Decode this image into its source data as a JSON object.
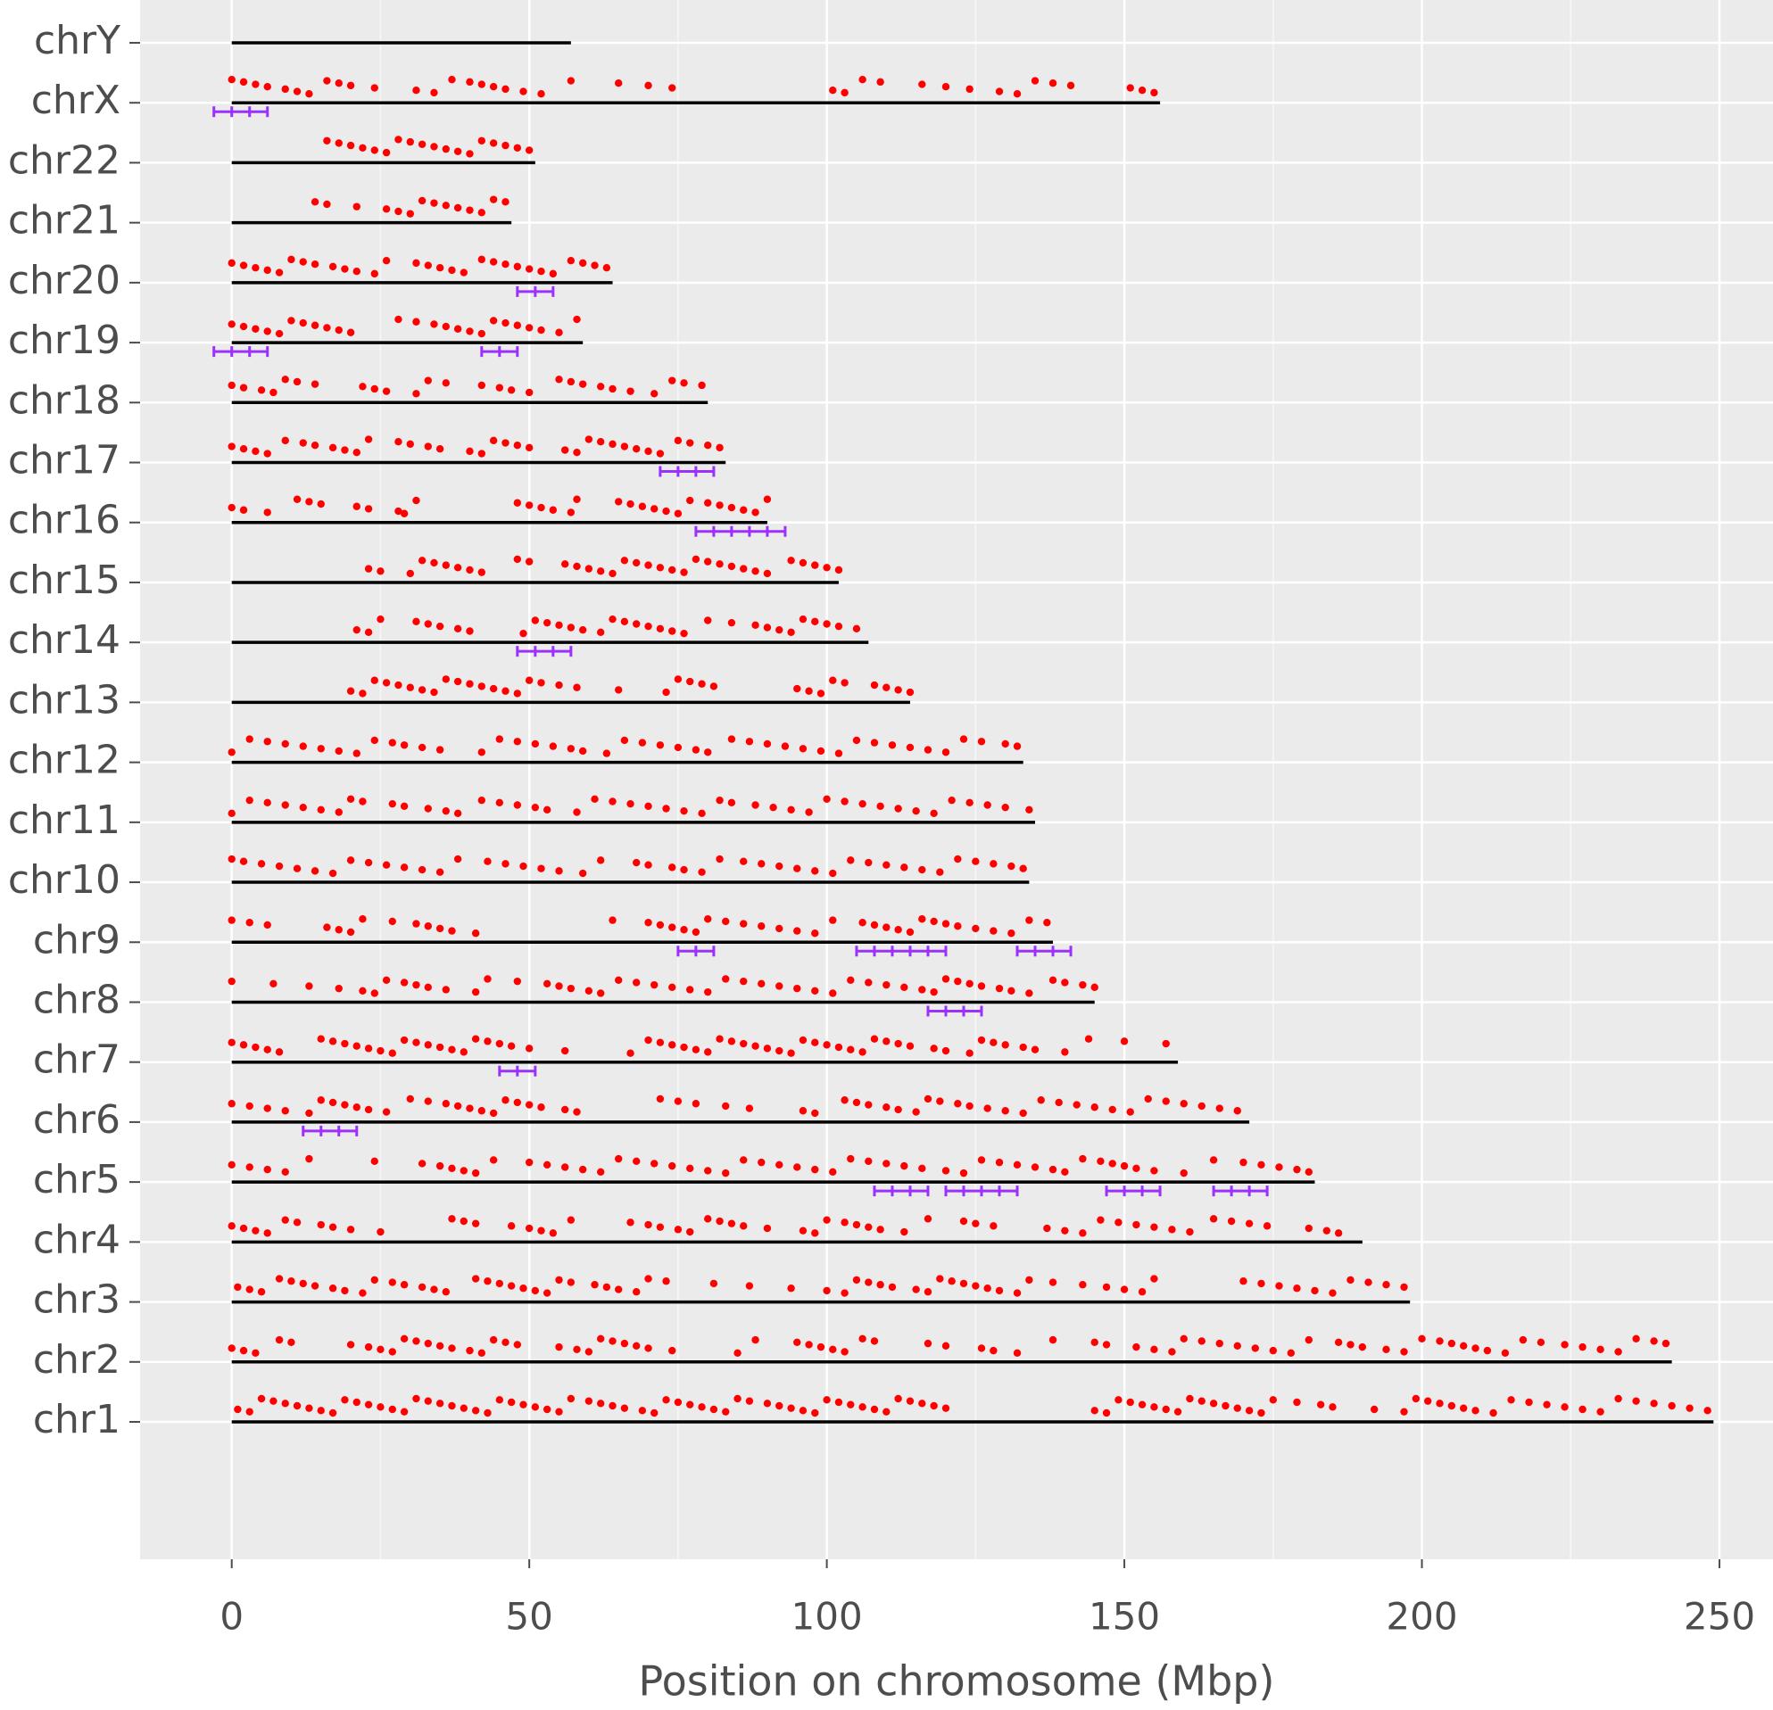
{
  "chart_data": {
    "type": "chromosome",
    "x_label": "Position on chromosome (Mbp)",
    "xlim": [
      -15.4,
      259.0
    ],
    "xticks": [
      0,
      50,
      100,
      150,
      200,
      250
    ],
    "grid": true,
    "line_color": "#000000",
    "point_color": "#ff0000",
    "interval_color": "#9b30ff",
    "chromosomes": [
      {
        "name": "chrY",
        "length": 57,
        "points": [],
        "intervals": []
      },
      {
        "name": "chrX",
        "length": 156,
        "points": [
          0,
          2,
          4,
          6,
          9,
          11,
          13,
          16,
          18,
          20,
          24,
          31,
          34,
          37,
          40,
          42,
          44,
          46,
          49,
          52,
          57,
          65,
          70,
          74,
          101,
          103,
          106,
          109,
          116,
          120,
          124,
          129,
          132,
          135,
          138,
          141,
          151,
          153,
          155
        ],
        "intervals": [
          [
            -3,
            6
          ]
        ]
      },
      {
        "name": "chr22",
        "length": 51,
        "points": [
          16,
          18,
          20,
          22,
          24,
          26,
          28,
          30,
          32,
          34,
          36,
          38,
          40,
          42,
          44,
          46,
          48,
          50
        ],
        "intervals": []
      },
      {
        "name": "chr21",
        "length": 47,
        "points": [
          14,
          16,
          21,
          26,
          28,
          30,
          32,
          34,
          36,
          38,
          40,
          42,
          44,
          46
        ],
        "intervals": []
      },
      {
        "name": "chr20",
        "length": 64,
        "points": [
          0,
          2,
          4,
          6,
          8,
          10,
          12,
          14,
          17,
          19,
          21,
          24,
          26,
          31,
          33,
          35,
          37,
          39,
          42,
          44,
          46,
          48,
          50,
          52,
          54,
          57,
          59,
          61,
          63
        ],
        "intervals": [
          [
            48,
            54
          ]
        ]
      },
      {
        "name": "chr19",
        "length": 59,
        "points": [
          0,
          2,
          4,
          6,
          8,
          10,
          12,
          14,
          16,
          18,
          20,
          28,
          31,
          34,
          36,
          38,
          40,
          42,
          44,
          46,
          48,
          50,
          52,
          55,
          58
        ],
        "intervals": [
          [
            -3,
            6
          ],
          [
            42,
            48
          ]
        ]
      },
      {
        "name": "chr18",
        "length": 80,
        "points": [
          0,
          2,
          5,
          7,
          9,
          11,
          14,
          22,
          24,
          26,
          31,
          33,
          36,
          42,
          45,
          47,
          50,
          55,
          57,
          59,
          62,
          64,
          67,
          71,
          74,
          76,
          79
        ],
        "intervals": []
      },
      {
        "name": "chr17",
        "length": 83,
        "points": [
          0,
          2,
          4,
          6,
          9,
          12,
          14,
          17,
          19,
          21,
          23,
          28,
          30,
          33,
          35,
          40,
          42,
          44,
          46,
          48,
          50,
          56,
          58,
          60,
          62,
          64,
          66,
          68,
          70,
          72,
          75,
          77,
          80,
          82
        ],
        "intervals": [
          [
            72,
            81
          ]
        ]
      },
      {
        "name": "chr16",
        "length": 90,
        "points": [
          0,
          2,
          6,
          11,
          13,
          15,
          21,
          23,
          28,
          29,
          31,
          48,
          50,
          52,
          54,
          57,
          58,
          65,
          67,
          69,
          71,
          73,
          75,
          77,
          80,
          82,
          84,
          86,
          88,
          90
        ],
        "intervals": [
          [
            78,
            93
          ]
        ]
      },
      {
        "name": "chr15",
        "length": 102,
        "points": [
          23,
          25,
          30,
          32,
          34,
          36,
          38,
          40,
          42,
          48,
          50,
          56,
          58,
          60,
          62,
          64,
          66,
          68,
          70,
          72,
          74,
          76,
          78,
          80,
          82,
          84,
          86,
          88,
          90,
          94,
          96,
          98,
          100,
          102
        ],
        "intervals": []
      },
      {
        "name": "chr14",
        "length": 107,
        "points": [
          21,
          23,
          25,
          31,
          33,
          35,
          38,
          40,
          49,
          51,
          53,
          55,
          57,
          59,
          62,
          64,
          66,
          68,
          70,
          72,
          74,
          76,
          80,
          84,
          88,
          90,
          92,
          94,
          96,
          98,
          100,
          102,
          105
        ],
        "intervals": [
          [
            48,
            57
          ]
        ]
      },
      {
        "name": "chr13",
        "length": 114,
        "points": [
          20,
          22,
          24,
          26,
          28,
          30,
          32,
          34,
          36,
          38,
          40,
          42,
          44,
          46,
          48,
          50,
          52,
          55,
          58,
          65,
          73,
          75,
          77,
          79,
          81,
          95,
          97,
          99,
          101,
          103,
          108,
          110,
          112,
          114
        ],
        "intervals": []
      },
      {
        "name": "chr12",
        "length": 133,
        "points": [
          0,
          3,
          6,
          9,
          12,
          15,
          18,
          21,
          24,
          27,
          29,
          32,
          35,
          42,
          45,
          48,
          51,
          54,
          57,
          59,
          63,
          66,
          69,
          72,
          75,
          78,
          80,
          84,
          87,
          90,
          93,
          96,
          99,
          102,
          105,
          108,
          111,
          114,
          117,
          120,
          123,
          126,
          130,
          132
        ],
        "intervals": []
      },
      {
        "name": "chr11",
        "length": 135,
        "points": [
          0,
          3,
          6,
          9,
          12,
          15,
          18,
          20,
          22,
          27,
          29,
          33,
          36,
          38,
          42,
          45,
          48,
          51,
          53,
          58,
          61,
          64,
          67,
          70,
          73,
          76,
          79,
          82,
          84,
          88,
          91,
          94,
          97,
          100,
          103,
          106,
          109,
          112,
          115,
          118,
          121,
          124,
          127,
          130,
          134
        ],
        "intervals": []
      },
      {
        "name": "chr10",
        "length": 134,
        "points": [
          0,
          2,
          5,
          8,
          11,
          14,
          17,
          20,
          23,
          26,
          29,
          32,
          35,
          38,
          43,
          46,
          49,
          52,
          55,
          59,
          62,
          68,
          70,
          74,
          76,
          79,
          82,
          86,
          89,
          92,
          95,
          98,
          101,
          104,
          107,
          110,
          113,
          116,
          119,
          122,
          125,
          128,
          131,
          133
        ],
        "intervals": []
      },
      {
        "name": "chr9",
        "length": 138,
        "points": [
          0,
          3,
          6,
          16,
          18,
          20,
          22,
          27,
          31,
          33,
          35,
          37,
          41,
          64,
          70,
          72,
          74,
          76,
          78,
          80,
          83,
          86,
          89,
          92,
          95,
          98,
          101,
          106,
          108,
          110,
          112,
          114,
          116,
          118,
          120,
          122,
          125,
          128,
          131,
          134,
          137
        ],
        "intervals": [
          [
            75,
            81
          ],
          [
            105,
            120
          ],
          [
            132,
            141
          ]
        ]
      },
      {
        "name": "chr8",
        "length": 145,
        "points": [
          0,
          7,
          13,
          18,
          22,
          24,
          26,
          29,
          31,
          33,
          36,
          41,
          43,
          48,
          53,
          55,
          57,
          60,
          62,
          65,
          68,
          71,
          74,
          77,
          80,
          83,
          86,
          89,
          92,
          95,
          98,
          101,
          104,
          107,
          110,
          113,
          116,
          118,
          120,
          122,
          124,
          126,
          129,
          131,
          134,
          138,
          140,
          143,
          145
        ],
        "intervals": [
          [
            117,
            126
          ]
        ]
      },
      {
        "name": "chr7",
        "length": 159,
        "points": [
          0,
          2,
          4,
          6,
          8,
          15,
          17,
          19,
          21,
          23,
          25,
          27,
          29,
          31,
          33,
          35,
          37,
          39,
          41,
          43,
          45,
          47,
          50,
          56,
          67,
          70,
          72,
          74,
          76,
          78,
          80,
          82,
          84,
          86,
          88,
          90,
          92,
          94,
          96,
          98,
          100,
          102,
          104,
          106,
          108,
          110,
          112,
          114,
          118,
          120,
          124,
          126,
          128,
          130,
          133,
          135,
          140,
          144,
          150,
          157
        ],
        "intervals": [
          [
            45,
            51
          ]
        ]
      },
      {
        "name": "chr6",
        "length": 171,
        "points": [
          0,
          3,
          6,
          9,
          13,
          15,
          17,
          19,
          21,
          23,
          26,
          30,
          33,
          36,
          38,
          40,
          42,
          44,
          46,
          48,
          50,
          52,
          56,
          58,
          72,
          75,
          78,
          83,
          87,
          96,
          98,
          103,
          105,
          107,
          110,
          112,
          115,
          117,
          119,
          122,
          124,
          127,
          130,
          133,
          136,
          139,
          142,
          145,
          148,
          151,
          154,
          157,
          160,
          163,
          166,
          169
        ],
        "intervals": [
          [
            12,
            21
          ]
        ]
      },
      {
        "name": "chr5",
        "length": 182,
        "points": [
          0,
          3,
          6,
          9,
          13,
          24,
          32,
          35,
          37,
          39,
          41,
          44,
          50,
          53,
          56,
          59,
          62,
          65,
          68,
          71,
          74,
          77,
          80,
          83,
          86,
          89,
          92,
          95,
          98,
          101,
          104,
          107,
          110,
          113,
          116,
          120,
          123,
          126,
          129,
          132,
          135,
          138,
          140,
          143,
          146,
          148,
          150,
          152,
          155,
          160,
          165,
          170,
          173,
          176,
          179,
          181
        ],
        "intervals": [
          [
            108,
            117
          ],
          [
            120,
            132
          ],
          [
            147,
            156
          ],
          [
            165,
            174
          ]
        ]
      },
      {
        "name": "chr4",
        "length": 190,
        "points": [
          0,
          2,
          4,
          6,
          9,
          11,
          15,
          17,
          20,
          25,
          37,
          39,
          41,
          47,
          50,
          52,
          54,
          57,
          67,
          70,
          72,
          75,
          77,
          80,
          82,
          84,
          86,
          90,
          96,
          98,
          100,
          103,
          105,
          107,
          109,
          113,
          117,
          123,
          125,
          128,
          137,
          140,
          143,
          146,
          149,
          152,
          155,
          158,
          161,
          165,
          168,
          171,
          174,
          181,
          184,
          186
        ],
        "intervals": []
      },
      {
        "name": "chr3",
        "length": 198,
        "points": [
          1,
          3,
          5,
          8,
          10,
          12,
          14,
          17,
          19,
          22,
          24,
          27,
          29,
          32,
          34,
          36,
          41,
          43,
          45,
          47,
          49,
          51,
          53,
          55,
          57,
          61,
          63,
          65,
          68,
          70,
          73,
          81,
          87,
          94,
          100,
          103,
          105,
          107,
          109,
          111,
          115,
          117,
          119,
          121,
          123,
          125,
          127,
          129,
          132,
          134,
          138,
          143,
          147,
          150,
          153,
          155,
          170,
          173,
          176,
          179,
          182,
          185,
          188,
          191,
          194,
          197
        ],
        "intervals": []
      },
      {
        "name": "chr2",
        "length": 242,
        "points": [
          0,
          2,
          4,
          8,
          10,
          20,
          23,
          25,
          27,
          29,
          31,
          33,
          35,
          37,
          40,
          42,
          44,
          46,
          48,
          55,
          58,
          60,
          62,
          64,
          66,
          68,
          70,
          74,
          85,
          88,
          95,
          97,
          99,
          101,
          103,
          106,
          108,
          117,
          120,
          126,
          128,
          132,
          138,
          145,
          147,
          152,
          155,
          158,
          160,
          163,
          166,
          169,
          172,
          175,
          178,
          181,
          186,
          188,
          190,
          194,
          197,
          200,
          203,
          205,
          207,
          209,
          211,
          214,
          217,
          220,
          224,
          227,
          230,
          233,
          236,
          239,
          241
        ],
        "intervals": []
      },
      {
        "name": "chr1",
        "length": 249,
        "points": [
          1,
          3,
          5,
          7,
          9,
          11,
          13,
          15,
          17,
          19,
          21,
          23,
          25,
          27,
          29,
          31,
          33,
          35,
          37,
          39,
          41,
          43,
          45,
          47,
          49,
          51,
          53,
          55,
          57,
          60,
          62,
          64,
          66,
          69,
          71,
          73,
          75,
          77,
          79,
          81,
          83,
          85,
          87,
          90,
          92,
          94,
          96,
          98,
          100,
          102,
          104,
          106,
          108,
          110,
          112,
          114,
          116,
          118,
          120,
          145,
          147,
          149,
          151,
          153,
          155,
          157,
          159,
          161,
          163,
          165,
          167,
          169,
          171,
          173,
          175,
          179,
          183,
          185,
          192,
          197,
          199,
          201,
          203,
          205,
          207,
          209,
          212,
          215,
          218,
          221,
          224,
          227,
          230,
          233,
          236,
          239,
          242,
          245,
          248
        ],
        "intervals": []
      }
    ]
  }
}
